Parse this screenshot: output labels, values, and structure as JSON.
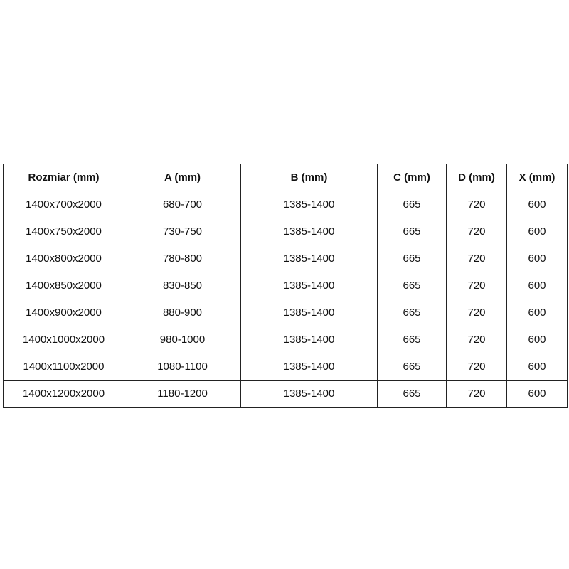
{
  "table": {
    "headers": [
      "Rozmiar (mm)",
      "A (mm)",
      "B (mm)",
      "C (mm)",
      "D (mm)",
      "X (mm)"
    ],
    "rows": [
      [
        "1400x700x2000",
        "680-700",
        "1385-1400",
        "665",
        "720",
        "600"
      ],
      [
        "1400x750x2000",
        "730-750",
        "1385-1400",
        "665",
        "720",
        "600"
      ],
      [
        "1400x800x2000",
        "780-800",
        "1385-1400",
        "665",
        "720",
        "600"
      ],
      [
        "1400x850x2000",
        "830-850",
        "1385-1400",
        "665",
        "720",
        "600"
      ],
      [
        "1400x900x2000",
        "880-900",
        "1385-1400",
        "665",
        "720",
        "600"
      ],
      [
        "1400x1000x2000",
        "980-1000",
        "1385-1400",
        "665",
        "720",
        "600"
      ],
      [
        "1400x1100x2000",
        "1080-1100",
        "1385-1400",
        "665",
        "720",
        "600"
      ],
      [
        "1400x1200x2000",
        "1180-1200",
        "1385-1400",
        "665",
        "720",
        "600"
      ]
    ]
  }
}
